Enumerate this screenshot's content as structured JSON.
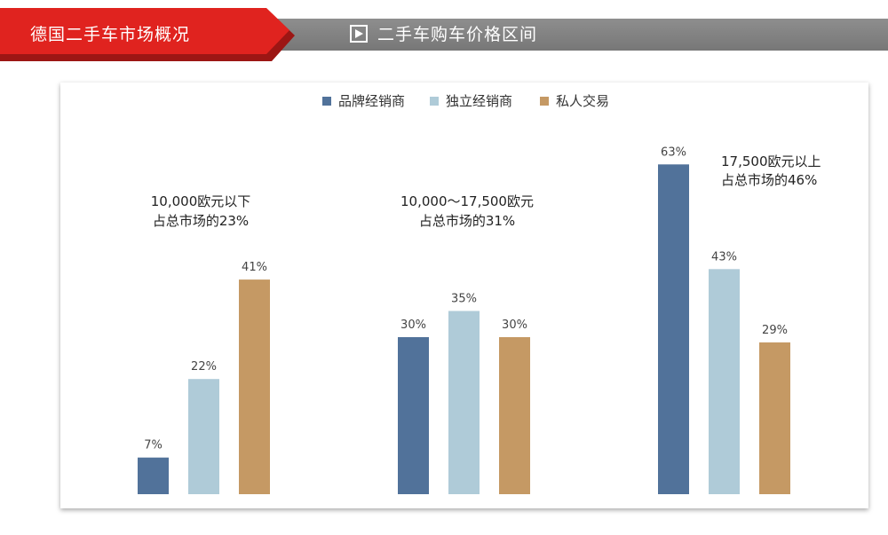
{
  "header": {
    "section_title": "德国二手车市场概况",
    "subtitle": "二手车购车价格区间",
    "accent_color": "#e0231f",
    "bar_color": "#808080",
    "play_icon": "play-icon"
  },
  "chart_data": {
    "type": "bar",
    "legend_position": "top-center",
    "grid": false,
    "ylim": [
      0,
      70
    ],
    "value_suffix": "%",
    "series": [
      {
        "name": "品牌经销商",
        "color": "#51729a"
      },
      {
        "name": "独立经销商",
        "color": "#afcbd8"
      },
      {
        "name": "私人交易",
        "color": "#c59964"
      }
    ],
    "groups": [
      {
        "annotation": [
          "10,000欧元以下",
          "占总市场的23%"
        ],
        "values": [
          7,
          22,
          41
        ]
      },
      {
        "annotation": [
          "10,000～17,500欧元",
          "占总市场的31%"
        ],
        "values": [
          30,
          35,
          30
        ]
      },
      {
        "annotation": [
          "17,500欧元以上",
          "占总市场的46%"
        ],
        "values": [
          63,
          43,
          29
        ]
      }
    ]
  }
}
